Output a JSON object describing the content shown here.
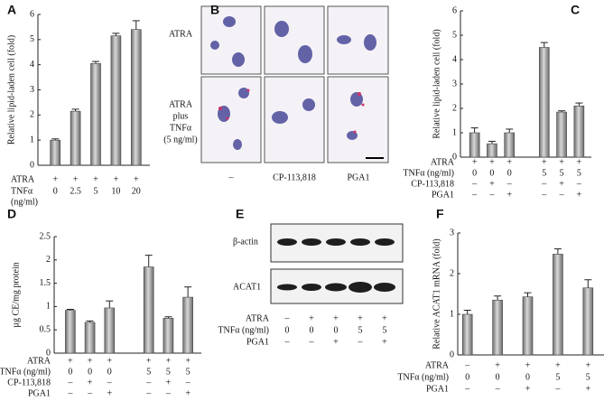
{
  "chart_data": [
    {
      "type": "bar",
      "panel_label": "A",
      "y_label": "Relative lipid-laden cell (fold)",
      "ylim": [
        0,
        6
      ],
      "yticks": [
        0,
        1,
        2,
        3,
        4,
        5,
        6
      ],
      "values": [
        1.0,
        2.15,
        4.05,
        5.15,
        5.4
      ],
      "error": [
        0.05,
        0.08,
        0.08,
        0.1,
        0.35
      ],
      "condition_rows": [
        {
          "label": "ATRA",
          "cells": [
            "+",
            "+",
            "+",
            "+",
            "+"
          ]
        },
        {
          "label": "TNFα",
          "unit": "(ng/ml)",
          "cells": [
            "0",
            "2.5",
            "5",
            "10",
            "20"
          ]
        }
      ]
    },
    {
      "type": "bar",
      "panel_label": "C",
      "y_label": "Relative lipid-laden cell (fold)",
      "ylim": [
        0,
        6
      ],
      "yticks": [
        0,
        1,
        2,
        3,
        4,
        5,
        6
      ],
      "values": [
        1.0,
        0.55,
        1.0,
        null,
        4.5,
        1.85,
        2.1
      ],
      "error": [
        0.2,
        0.1,
        0.15,
        null,
        0.2,
        0.05,
        0.12
      ],
      "condition_rows": [
        {
          "label": "ATRA",
          "cells": [
            "+",
            "+",
            "+",
            null,
            "+",
            "+",
            "+"
          ]
        },
        {
          "label": "TNFα (ng/ml)",
          "cells": [
            "0",
            "0",
            "0",
            null,
            "5",
            "5",
            "5"
          ]
        },
        {
          "label": "CP-113,818",
          "cells": [
            "–",
            "+",
            "–",
            null,
            "–",
            "+",
            "–"
          ]
        },
        {
          "label": "PGA1",
          "cells": [
            "–",
            "–",
            "+",
            null,
            "–",
            "–",
            "+"
          ]
        }
      ]
    },
    {
      "type": "bar",
      "panel_label": "D",
      "y_label": "µg CE/mg protein",
      "ylim": [
        0,
        2.5
      ],
      "yticks": [
        0,
        0.5,
        1,
        1.5,
        2,
        2.5
      ],
      "values": [
        0.92,
        0.66,
        0.97,
        null,
        1.85,
        0.75,
        1.2
      ],
      "error": [
        0.02,
        0.03,
        0.15,
        null,
        0.25,
        0.03,
        0.22
      ],
      "condition_rows": [
        {
          "label": "ATRA",
          "cells": [
            "+",
            "+",
            "+",
            null,
            "+",
            "+",
            "+"
          ]
        },
        {
          "label": "TNFα (ng/ml)",
          "cells": [
            "0",
            "0",
            "0",
            null,
            "5",
            "5",
            "5"
          ]
        },
        {
          "label": "CP-113,818",
          "cells": [
            "–",
            "+",
            "–",
            null,
            "–",
            "+",
            "–"
          ]
        },
        {
          "label": "PGA1",
          "cells": [
            "–",
            "–",
            "+",
            null,
            "–",
            "–",
            "+"
          ]
        }
      ]
    },
    {
      "type": "bar",
      "panel_label": "F",
      "y_label": "Relative ACAT1 mRNA (fold)",
      "ylim": [
        0,
        3
      ],
      "yticks": [
        0,
        1,
        2,
        3
      ],
      "values": [
        1.0,
        1.35,
        1.43,
        2.48,
        1.65
      ],
      "error": [
        0.1,
        0.1,
        0.1,
        0.13,
        0.2
      ],
      "condition_rows": [
        {
          "label": "ATRA",
          "cells": [
            "–",
            "+",
            "+",
            "+",
            "+"
          ]
        },
        {
          "label": "TNFα (ng/ml)",
          "cells": [
            "0",
            "0",
            "0",
            "5",
            "5"
          ]
        },
        {
          "label": "PGA1",
          "cells": [
            "–",
            "–",
            "+",
            "–",
            "+"
          ]
        }
      ]
    }
  ],
  "panel_b": {
    "panel_label": "B",
    "row_labels": [
      [
        "ATRA"
      ],
      [
        "ATRA",
        "plus",
        "TNFα",
        "(5 ng/ml)"
      ]
    ],
    "column_labels": [
      "–",
      "CP-113,818",
      "PGA1"
    ]
  },
  "panel_e": {
    "panel_label": "E",
    "bands": [
      "β-actin",
      "ACAT1"
    ],
    "condition_rows": [
      {
        "label": "ATRA",
        "cells": [
          "–",
          "+",
          "+",
          "+",
          "+"
        ]
      },
      {
        "label": "TNFα (ng/ml)",
        "cells": [
          "0",
          "0",
          "0",
          "5",
          "5"
        ]
      },
      {
        "label": "PGA1",
        "cells": [
          "–",
          "–",
          "+",
          "–",
          "+"
        ]
      }
    ]
  }
}
